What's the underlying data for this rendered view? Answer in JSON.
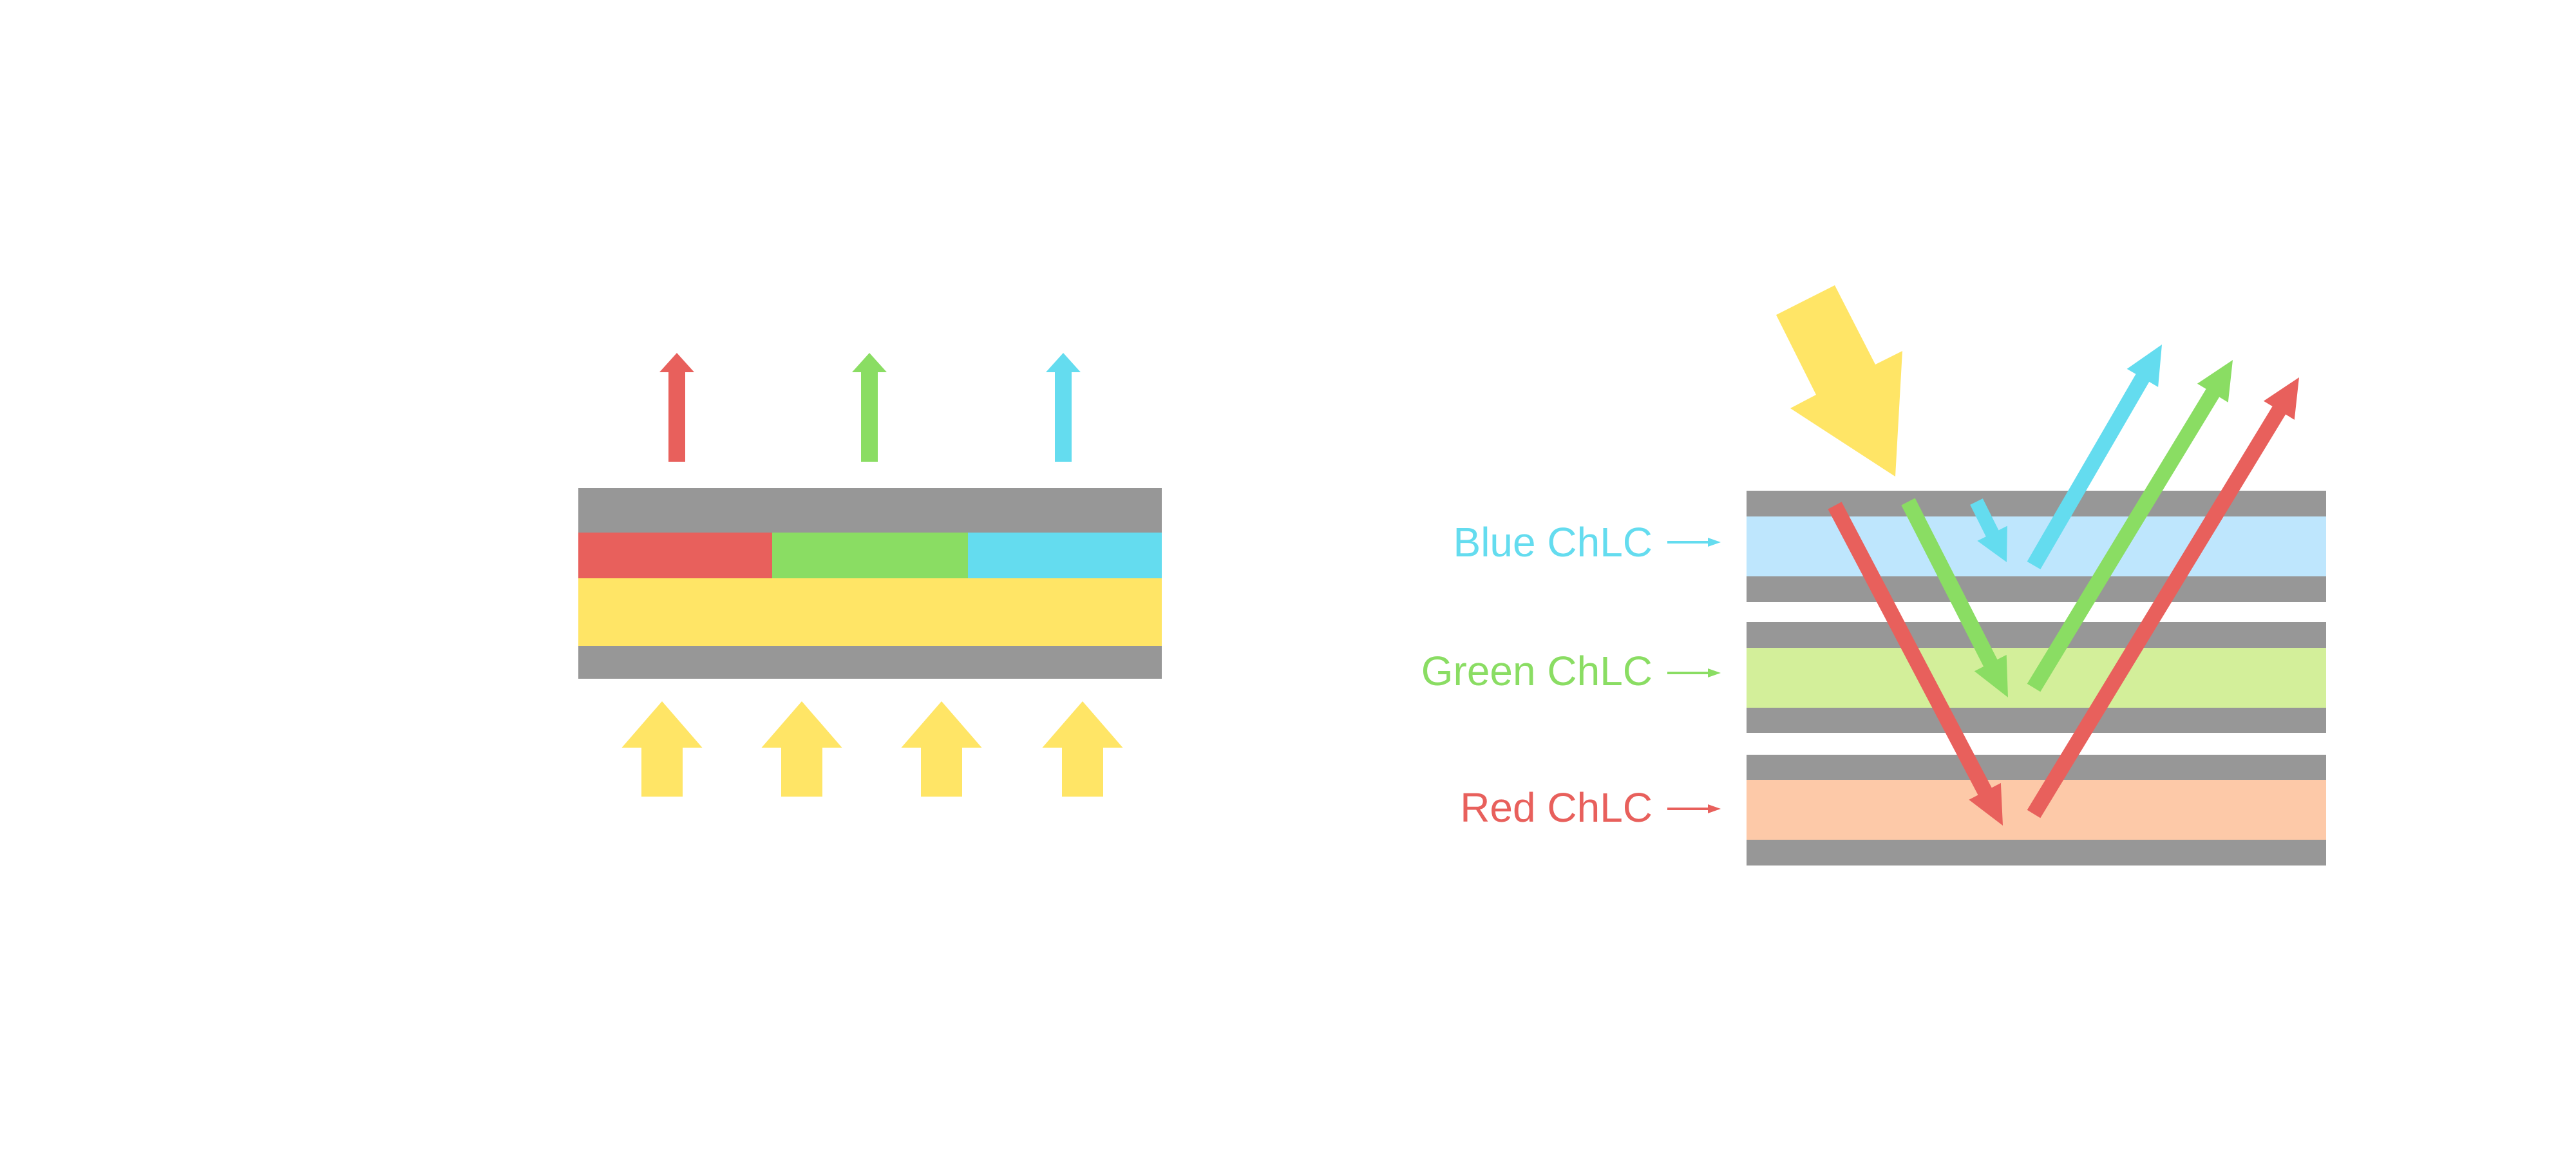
{
  "colors": {
    "red": "#E8605C",
    "green": "#8ADD63",
    "blue": "#64DCEF",
    "yellow": "#FFE566",
    "gray": "#979797",
    "light_blue": "#BEE6FD",
    "light_green": "#D3EF9A",
    "peach": "#FDC9A8"
  },
  "right_diagram": {
    "labels": {
      "blue": "Blue ChLC",
      "green": "Green ChLC",
      "red": "Red ChLC"
    }
  }
}
